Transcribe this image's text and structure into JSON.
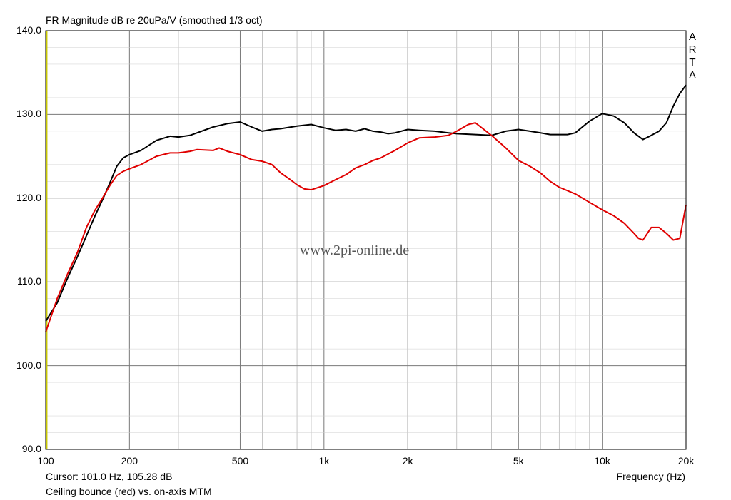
{
  "title": "FR Magnitude dB re 20uPa/V (smoothed 1/3 oct)",
  "cursor_text": "Cursor: 101.0 Hz, 105.28 dB",
  "note": "Ceiling bounce (red) vs. on-axis MTM",
  "brand": [
    "A",
    "R",
    "T",
    "A"
  ],
  "watermark": "www.2pi-online.de",
  "colors": {
    "red": "#e00000",
    "black": "#000000",
    "grid": "#a0a0a0",
    "cursor": "#c8c800"
  },
  "chart_data": {
    "type": "line",
    "title": "FR Magnitude dB re 20uPa/V (smoothed 1/3 oct)",
    "xlabel": "Frequency (Hz)",
    "ylabel": "",
    "xscale": "log",
    "xlim": [
      100,
      20000
    ],
    "ylim": [
      90,
      140
    ],
    "grid": true,
    "x_tick_values": [
      100,
      200,
      500,
      1000,
      2000,
      5000,
      10000,
      20000
    ],
    "x_tick_labels": [
      "100",
      "200",
      "500",
      "1k",
      "2k",
      "5k",
      "10k",
      "20k"
    ],
    "y_tick_values": [
      90,
      100,
      110,
      120,
      130,
      140
    ],
    "y_tick_labels": [
      "90.0",
      "100.0",
      "110.0",
      "120.0",
      "130.0",
      "140.0"
    ],
    "cursor_x": 101.0,
    "series": [
      {
        "color": "black",
        "x": [
          100,
          110,
          120,
          130,
          140,
          150,
          160,
          170,
          180,
          190,
          200,
          220,
          250,
          280,
          300,
          330,
          350,
          400,
          450,
          500,
          550,
          600,
          650,
          700,
          800,
          900,
          1000,
          1100,
          1200,
          1300,
          1400,
          1500,
          1600,
          1700,
          1800,
          2000,
          2200,
          2500,
          2800,
          3000,
          3500,
          4000,
          4500,
          5000,
          5500,
          6000,
          6500,
          7000,
          7500,
          8000,
          9000,
          10000,
          11000,
          12000,
          13000,
          14000,
          15000,
          16000,
          17000,
          18000,
          19000,
          20000
        ],
        "y": [
          105.3,
          107.5,
          110.5,
          113.0,
          115.5,
          117.8,
          119.8,
          121.8,
          123.8,
          124.8,
          125.2,
          125.7,
          126.9,
          127.4,
          127.3,
          127.5,
          127.8,
          128.5,
          128.9,
          129.1,
          128.5,
          128.0,
          128.2,
          128.3,
          128.6,
          128.8,
          128.4,
          128.1,
          128.2,
          128.0,
          128.3,
          128.0,
          127.9,
          127.7,
          127.8,
          128.2,
          128.1,
          128.0,
          127.8,
          127.7,
          127.6,
          127.5,
          128.0,
          128.2,
          128.0,
          127.8,
          127.6,
          127.6,
          127.6,
          127.8,
          129.2,
          130.1,
          129.8,
          129.0,
          127.8,
          127.0,
          127.5,
          128.0,
          129.0,
          131.0,
          132.5,
          133.5
        ]
      },
      {
        "color": "red",
        "x": [
          100,
          110,
          120,
          130,
          140,
          150,
          160,
          170,
          180,
          190,
          200,
          220,
          250,
          280,
          300,
          330,
          350,
          400,
          420,
          450,
          500,
          550,
          600,
          650,
          700,
          750,
          800,
          850,
          900,
          1000,
          1100,
          1200,
          1300,
          1400,
          1500,
          1600,
          1800,
          2000,
          2200,
          2500,
          2800,
          3000,
          3300,
          3500,
          4000,
          4500,
          5000,
          5500,
          6000,
          6500,
          7000,
          8000,
          9000,
          10000,
          11000,
          12000,
          13000,
          13500,
          14000,
          15000,
          16000,
          17000,
          18000,
          19000,
          20000
        ],
        "y": [
          104.0,
          108.0,
          111.0,
          113.5,
          116.5,
          118.5,
          120.0,
          121.5,
          122.7,
          123.2,
          123.5,
          124.0,
          125.0,
          125.4,
          125.4,
          125.6,
          125.8,
          125.7,
          126.0,
          125.6,
          125.2,
          124.6,
          124.4,
          124.0,
          123.0,
          122.3,
          121.6,
          121.1,
          121.0,
          121.5,
          122.2,
          122.8,
          123.6,
          124.0,
          124.5,
          124.8,
          125.7,
          126.6,
          127.2,
          127.3,
          127.5,
          128.0,
          128.8,
          129.0,
          127.5,
          126.0,
          124.5,
          123.8,
          123.0,
          122.0,
          121.3,
          120.5,
          119.5,
          118.6,
          117.9,
          117.0,
          115.8,
          115.2,
          115.0,
          116.5,
          116.5,
          115.8,
          115.0,
          115.2,
          119.2
        ]
      }
    ]
  }
}
